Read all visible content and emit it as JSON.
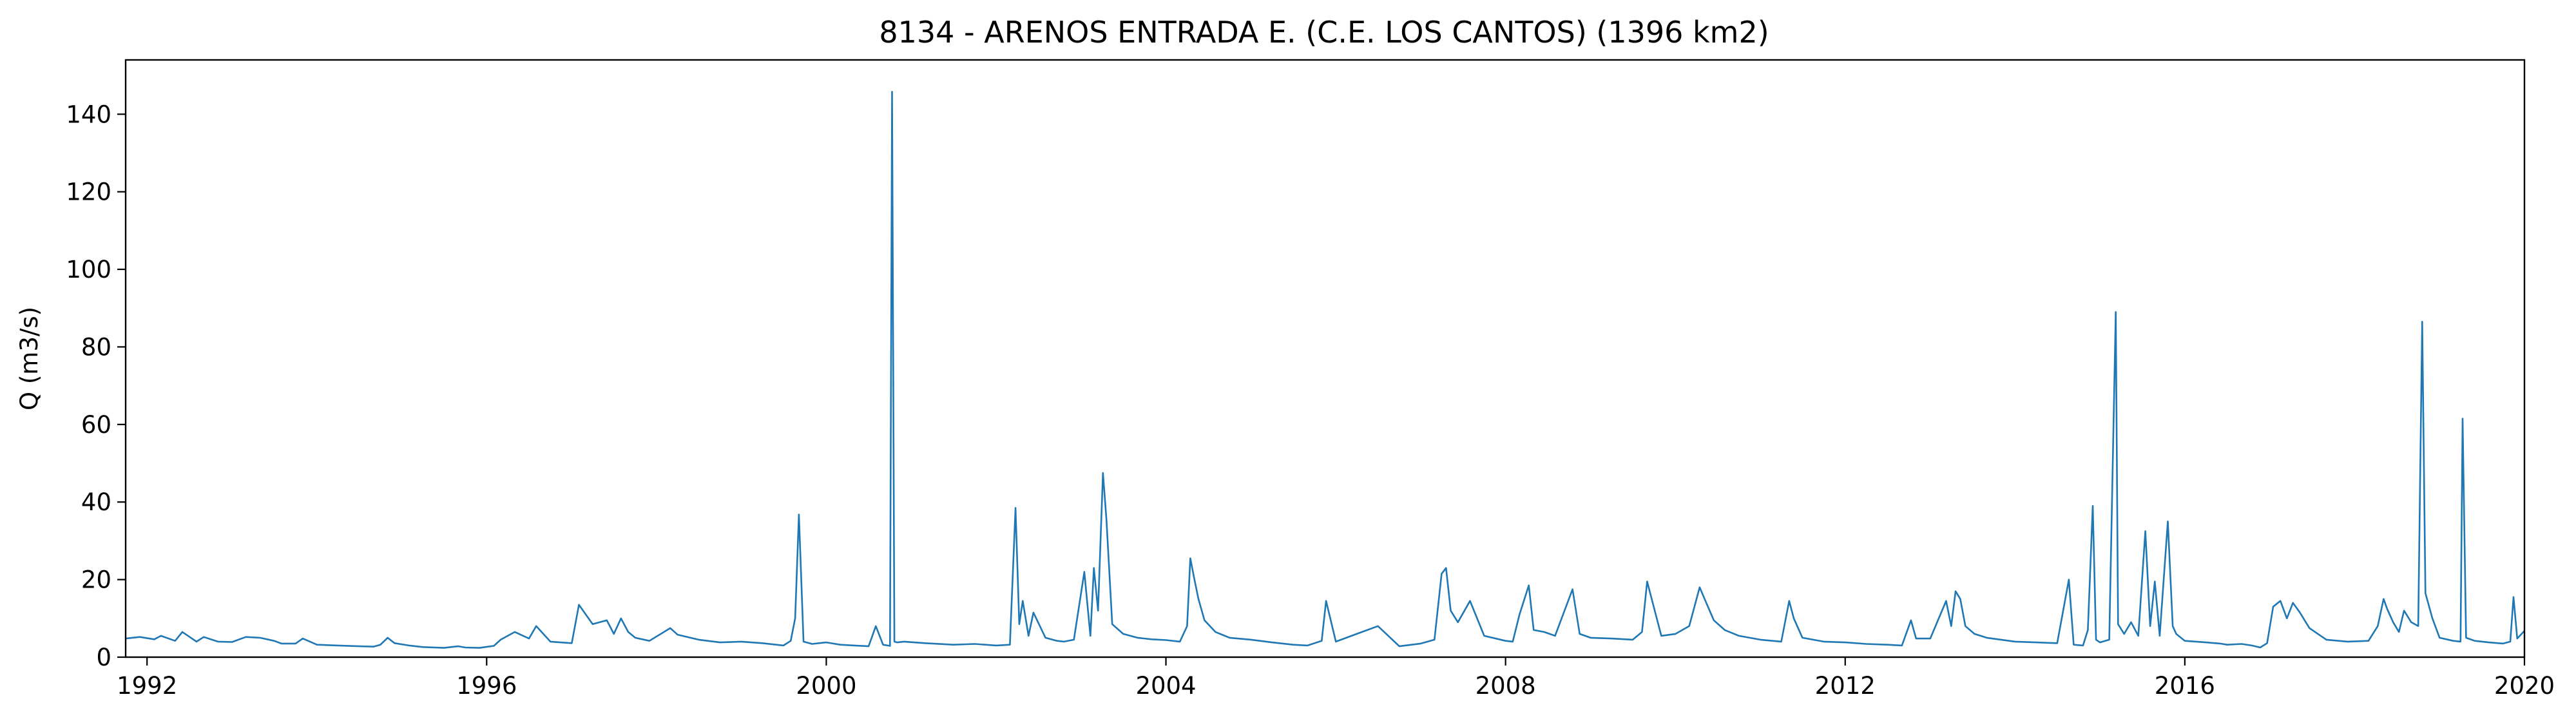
{
  "chart_data": {
    "type": "line",
    "title": "8134 - ARENOS ENTRADA E. (C.E. LOS CANTOS) (1396 km2)",
    "xlabel": "",
    "ylabel": "Q (m3/s)",
    "xlim": [
      "1991-10-01",
      "2020-01-01"
    ],
    "ylim": [
      0,
      154
    ],
    "x_ticks": [
      {
        "value": "1992-01-01",
        "label": "1992"
      },
      {
        "value": "1996-01-01",
        "label": "1996"
      },
      {
        "value": "2000-01-01",
        "label": "2000"
      },
      {
        "value": "2004-01-01",
        "label": "2004"
      },
      {
        "value": "2008-01-01",
        "label": "2008"
      },
      {
        "value": "2012-01-01",
        "label": "2012"
      },
      {
        "value": "2016-01-01",
        "label": "2016"
      },
      {
        "value": "2020-01-01",
        "label": "2020"
      }
    ],
    "y_ticks": [
      0,
      20,
      40,
      60,
      80,
      100,
      120,
      140
    ],
    "grid": false,
    "series": [
      {
        "color": "#1f77b4",
        "x": [
          "1991-10-01",
          "1991-12-01",
          "1992-02-01",
          "1992-03-01",
          "1992-05-01",
          "1992-06-01",
          "1992-08-01",
          "1992-09-01",
          "1992-11-01",
          "1993-01-01",
          "1993-03-01",
          "1993-05-01",
          "1993-07-01",
          "1993-08-01",
          "1993-10-01",
          "1993-11-01",
          "1994-01-01",
          "1994-04-01",
          "1994-07-01",
          "1994-09-01",
          "1994-10-01",
          "1994-11-01",
          "1994-12-01",
          "1995-02-01",
          "1995-04-01",
          "1995-07-01",
          "1995-09-01",
          "1995-10-01",
          "1995-12-01",
          "1996-02-01",
          "1996-03-01",
          "1996-05-01",
          "1996-07-01",
          "1996-08-01",
          "1996-10-01",
          "1997-01-01",
          "1997-02-01",
          "1997-04-01",
          "1997-06-01",
          "1997-07-01",
          "1997-08-01",
          "1997-09-01",
          "1997-10-01",
          "1997-12-01",
          "1998-03-01",
          "1998-04-01",
          "1998-07-01",
          "1998-10-01",
          "1999-01-01",
          "1999-04-01",
          "1999-07-01",
          "1999-08-01",
          "1999-08-20",
          "1999-09-05",
          "1999-09-25",
          "1999-11-01",
          "2000-01-01",
          "2000-03-01",
          "2000-05-01",
          "2000-07-01",
          "2000-08-01",
          "2000-09-01",
          "2000-10-01",
          "2000-10-10",
          "2000-10-20",
          "2000-11-01",
          "2000-12-01",
          "2001-03-01",
          "2001-07-01",
          "2001-10-01",
          "2002-01-01",
          "2002-03-01",
          "2002-03-25",
          "2002-04-10",
          "2002-04-25",
          "2002-05-20",
          "2002-06-10",
          "2002-08-01",
          "2002-09-20",
          "2002-10-20",
          "2002-12-01",
          "2003-01-15",
          "2003-02-10",
          "2003-02-25",
          "2003-03-15",
          "2003-04-05",
          "2003-04-20",
          "2003-05-15",
          "2003-07-01",
          "2003-09-01",
          "2003-11-01",
          "2004-01-01",
          "2004-03-01",
          "2004-04-01",
          "2004-04-15",
          "2004-05-01",
          "2004-05-20",
          "2004-06-15",
          "2004-08-01",
          "2004-10-01",
          "2005-01-01",
          "2005-04-01",
          "2005-07-01",
          "2005-09-01",
          "2005-11-01",
          "2005-11-20",
          "2006-01-01",
          "2006-04-01",
          "2006-07-01",
          "2006-10-01",
          "2007-01-01",
          "2007-03-01",
          "2007-04-01",
          "2007-04-20",
          "2007-05-10",
          "2007-06-10",
          "2007-08-01",
          "2007-10-01",
          "2008-01-01",
          "2008-02-01",
          "2008-03-01",
          "2008-04-10",
          "2008-05-01",
          "2008-06-15",
          "2008-08-01",
          "2008-10-15",
          "2008-11-15",
          "2009-01-01",
          "2009-04-01",
          "2009-07-01",
          "2009-08-10",
          "2009-09-01",
          "2009-11-01",
          "2010-01-01",
          "2010-03-01",
          "2010-04-15",
          "2010-05-10",
          "2010-06-15",
          "2010-08-01",
          "2010-10-01",
          "2011-01-01",
          "2011-04-01",
          "2011-05-05",
          "2011-05-25",
          "2011-07-01",
          "2011-10-01",
          "2012-01-01",
          "2012-04-01",
          "2012-07-01",
          "2012-09-01",
          "2012-10-10",
          "2012-11-01",
          "2013-01-01",
          "2013-03-10",
          "2013-04-01",
          "2013-04-20",
          "2013-05-10",
          "2013-06-01",
          "2013-07-10",
          "2013-09-01",
          "2013-11-01",
          "2014-01-01",
          "2014-04-01",
          "2014-07-01",
          "2014-08-20",
          "2014-09-10",
          "2014-10-20",
          "2014-11-10",
          "2014-12-01",
          "2014-12-15",
          "2015-01-01",
          "2015-02-10",
          "2015-03-10",
          "2015-03-20",
          "2015-04-15",
          "2015-05-15",
          "2015-06-15",
          "2015-07-15",
          "2015-08-05",
          "2015-08-25",
          "2015-09-15",
          "2015-10-20",
          "2015-11-10",
          "2015-11-25",
          "2016-01-01",
          "2016-04-01",
          "2016-06-01",
          "2016-07-01",
          "2016-09-01",
          "2016-10-15",
          "2016-11-20",
          "2016-12-20",
          "2017-01-15",
          "2017-02-15",
          "2017-03-15",
          "2017-04-10",
          "2017-05-10",
          "2017-06-20",
          "2017-09-01",
          "2017-12-01",
          "2018-03-01",
          "2018-04-10",
          "2018-05-05",
          "2018-05-20",
          "2018-06-15",
          "2018-07-10",
          "2018-08-01",
          "2018-09-01",
          "2018-10-01",
          "2018-10-18",
          "2018-11-01",
          "2018-12-01",
          "2019-01-01",
          "2019-03-01",
          "2019-04-01",
          "2019-04-10",
          "2019-04-25",
          "2019-06-01",
          "2019-08-01",
          "2019-10-01",
          "2019-11-01",
          "2019-11-15",
          "2019-12-01",
          "2020-01-01"
        ],
        "y": [
          4.8,
          5.2,
          4.6,
          5.5,
          4.2,
          6.5,
          4.0,
          5.2,
          4.0,
          3.9,
          5.2,
          5.0,
          4.2,
          3.5,
          3.5,
          4.8,
          3.2,
          3.0,
          2.8,
          2.7,
          3.2,
          5.0,
          3.6,
          3.0,
          2.6,
          2.4,
          2.8,
          2.5,
          2.4,
          2.9,
          4.5,
          6.5,
          4.8,
          8.0,
          4.0,
          3.6,
          13.5,
          8.5,
          9.5,
          6.0,
          10.0,
          6.5,
          5.0,
          4.2,
          7.5,
          5.8,
          4.5,
          3.8,
          4.0,
          3.6,
          3.0,
          4.2,
          10.0,
          36.8,
          4.0,
          3.4,
          3.8,
          3.2,
          3.0,
          2.8,
          8.0,
          3.2,
          2.9,
          145.8,
          4.0,
          3.8,
          4.0,
          3.6,
          3.2,
          3.4,
          3.0,
          3.2,
          38.5,
          8.5,
          14.5,
          5.5,
          11.5,
          5.0,
          4.2,
          4.0,
          4.5,
          22.0,
          5.5,
          23.0,
          12.0,
          47.5,
          35.5,
          8.5,
          6.0,
          5.0,
          4.6,
          4.4,
          4.0,
          8.0,
          25.5,
          20.5,
          15.0,
          9.5,
          6.5,
          5.0,
          4.5,
          3.8,
          3.2,
          3.0,
          4.2,
          14.5,
          4.0,
          6.0,
          8.0,
          2.8,
          3.5,
          4.5,
          21.5,
          23.0,
          12.0,
          9.0,
          14.5,
          5.5,
          4.2,
          4.0,
          11.0,
          18.5,
          7.0,
          6.5,
          5.5,
          17.5,
          6.0,
          5.0,
          4.8,
          4.5,
          6.5,
          19.5,
          5.5,
          6.0,
          8.0,
          18.0,
          14.5,
          9.5,
          7.0,
          5.5,
          4.5,
          4.0,
          14.5,
          10.0,
          5.0,
          4.0,
          3.8,
          3.4,
          3.2,
          3.0,
          9.5,
          4.8,
          4.8,
          14.5,
          8.0,
          17.0,
          15.0,
          8.0,
          6.0,
          5.0,
          4.5,
          4.0,
          3.8,
          3.6,
          20.0,
          3.2,
          3.0,
          7.0,
          39.0,
          4.5,
          3.8,
          4.5,
          89.0,
          8.5,
          6.0,
          9.0,
          5.5,
          32.5,
          8.0,
          19.5,
          5.5,
          35.0,
          8.0,
          6.0,
          4.2,
          3.8,
          3.5,
          3.2,
          3.4,
          3.0,
          2.5,
          3.6,
          13.0,
          14.5,
          10.0,
          14.0,
          11.5,
          7.5,
          4.5,
          4.0,
          4.2,
          8.0,
          15.0,
          12.5,
          9.0,
          6.5,
          12.0,
          9.0,
          8.0,
          86.5,
          16.5,
          10.0,
          5.0,
          4.2,
          4.0,
          61.5,
          5.0,
          4.2,
          3.8,
          3.5,
          4.0,
          15.5,
          4.8,
          6.8
        ]
      }
    ]
  }
}
